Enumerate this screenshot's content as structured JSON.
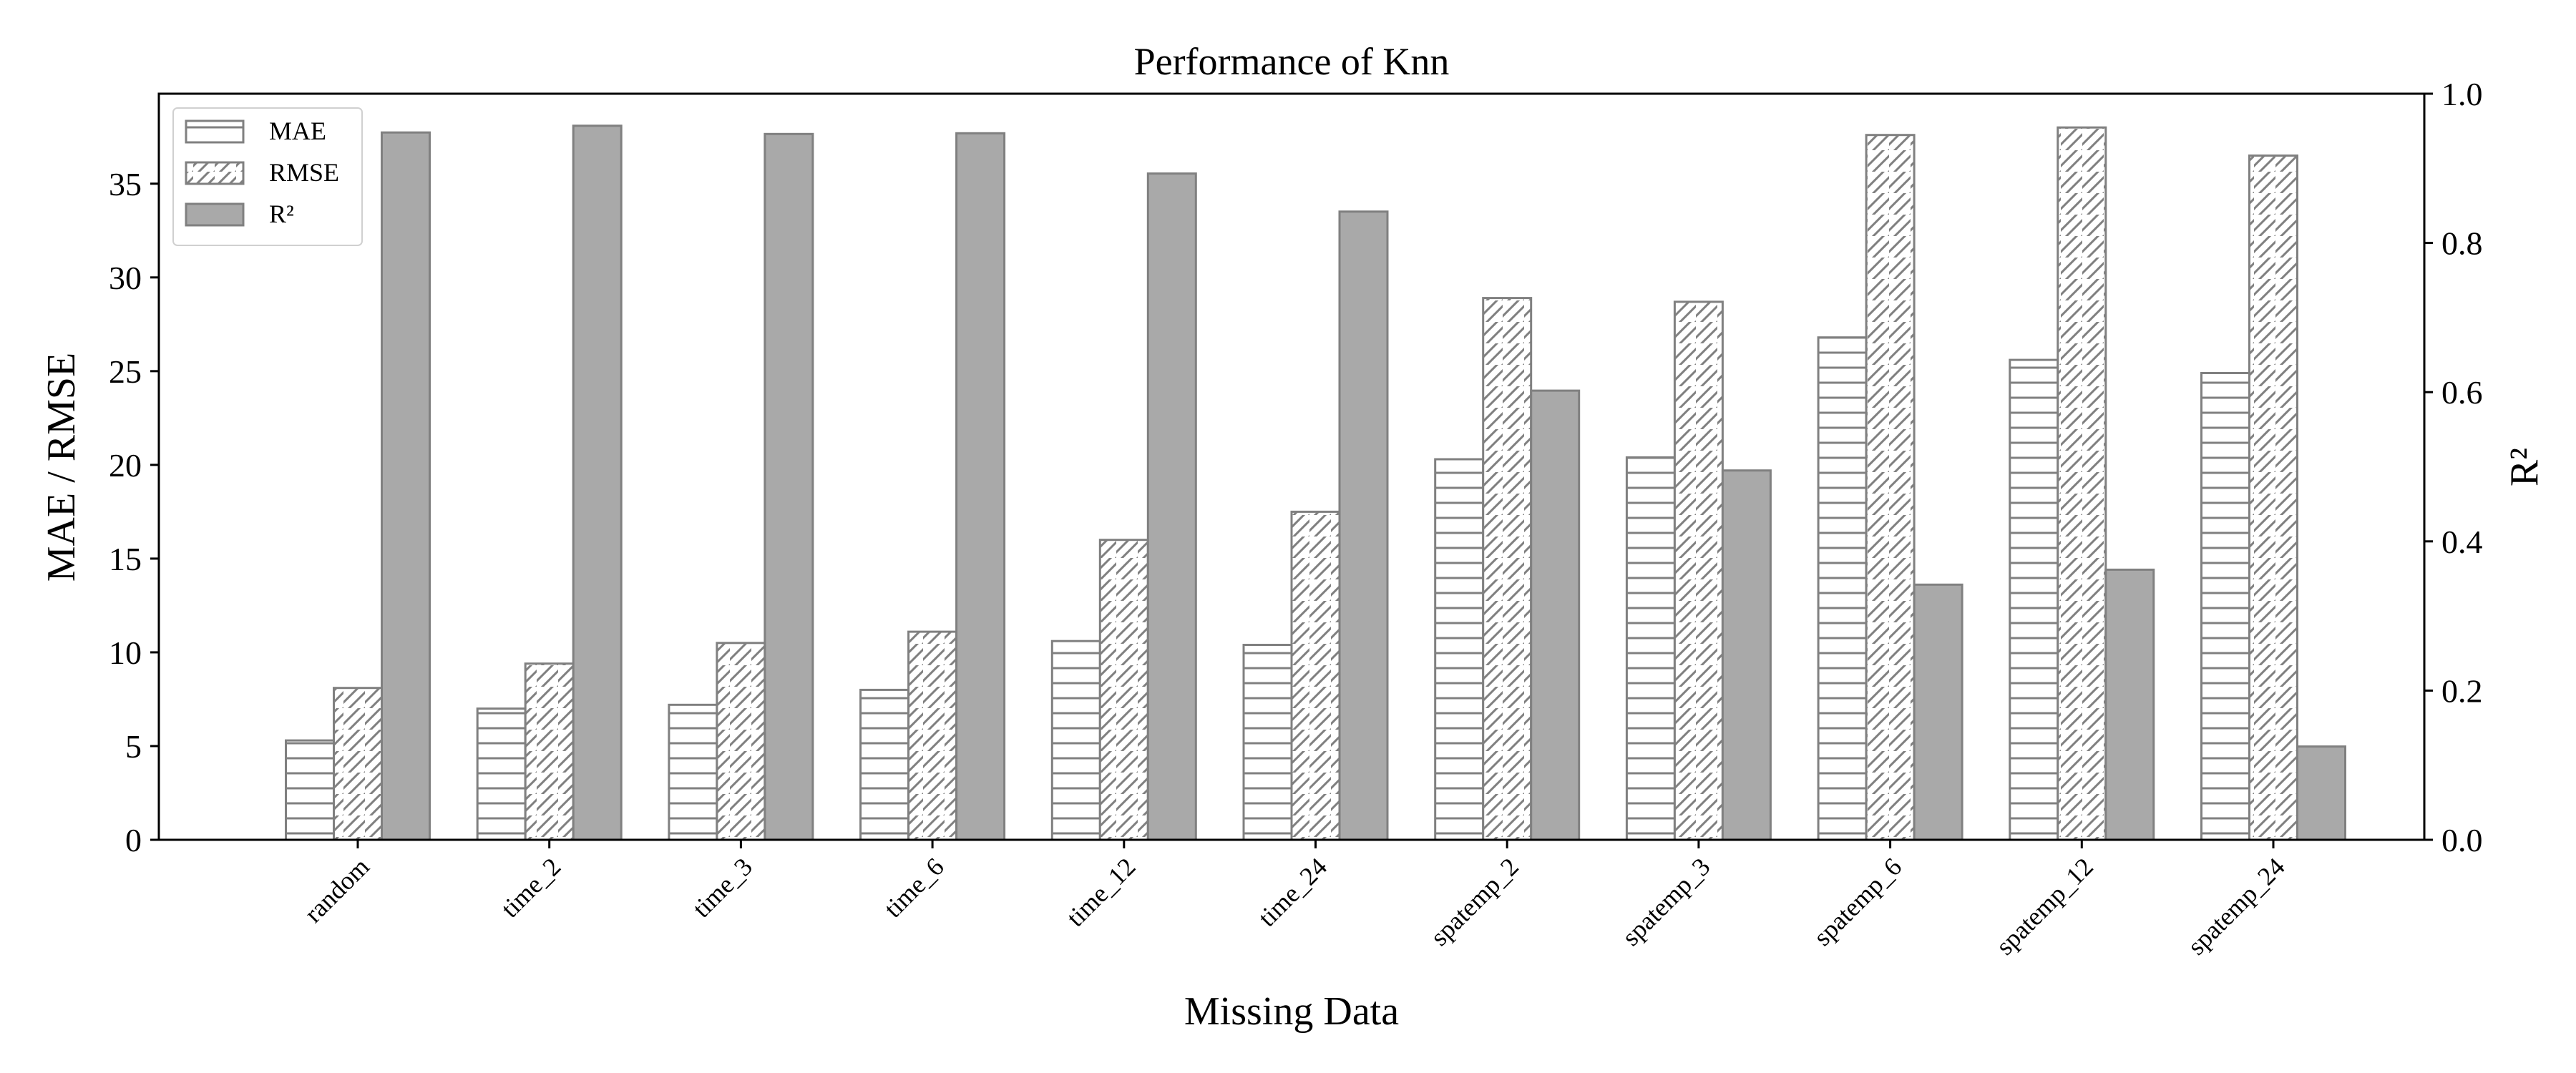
{
  "chart_data": {
    "type": "bar",
    "title": "Performance of Knn",
    "xlabel": "Missing Data",
    "ylabel_left": "MAE / RMSE",
    "ylabel_right": "R²",
    "ylim_left": [
      0,
      39.8
    ],
    "ylim_right": [
      0,
      1.0
    ],
    "yticks_left": [
      "0",
      "5",
      "10",
      "15",
      "20",
      "25",
      "30",
      "35"
    ],
    "yticks_right": [
      "0.0",
      "0.2",
      "0.4",
      "0.6",
      "0.8",
      "1.0"
    ],
    "categories": [
      "random",
      "time_2",
      "time_3",
      "time_6",
      "time_12",
      "time_24",
      "spatemp_2",
      "spatemp_3",
      "spatemp_6",
      "spatemp_12",
      "spatemp_24"
    ],
    "series": [
      {
        "name": "MAE",
        "axis": "left",
        "style": "horizontal-hatch",
        "values": [
          5.3,
          7.0,
          7.2,
          8.0,
          10.6,
          10.4,
          20.3,
          20.4,
          26.8,
          25.6,
          24.9
        ]
      },
      {
        "name": "RMSE",
        "axis": "left",
        "style": "diagonal-hatch",
        "values": [
          8.1,
          9.4,
          10.5,
          11.1,
          16.0,
          17.5,
          28.9,
          28.7,
          37.6,
          38.0,
          36.5
        ]
      },
      {
        "name": "R²",
        "axis": "right",
        "style": "solid",
        "values": [
          0.948,
          0.957,
          0.946,
          0.947,
          0.893,
          0.842,
          0.602,
          0.495,
          0.342,
          0.362,
          0.125
        ]
      }
    ],
    "legend": {
      "placement": "top-left"
    },
    "grid": false,
    "colors": {
      "edge": "#808080",
      "solid_fill": "#a9a9a9",
      "hatch": "#808080"
    }
  }
}
